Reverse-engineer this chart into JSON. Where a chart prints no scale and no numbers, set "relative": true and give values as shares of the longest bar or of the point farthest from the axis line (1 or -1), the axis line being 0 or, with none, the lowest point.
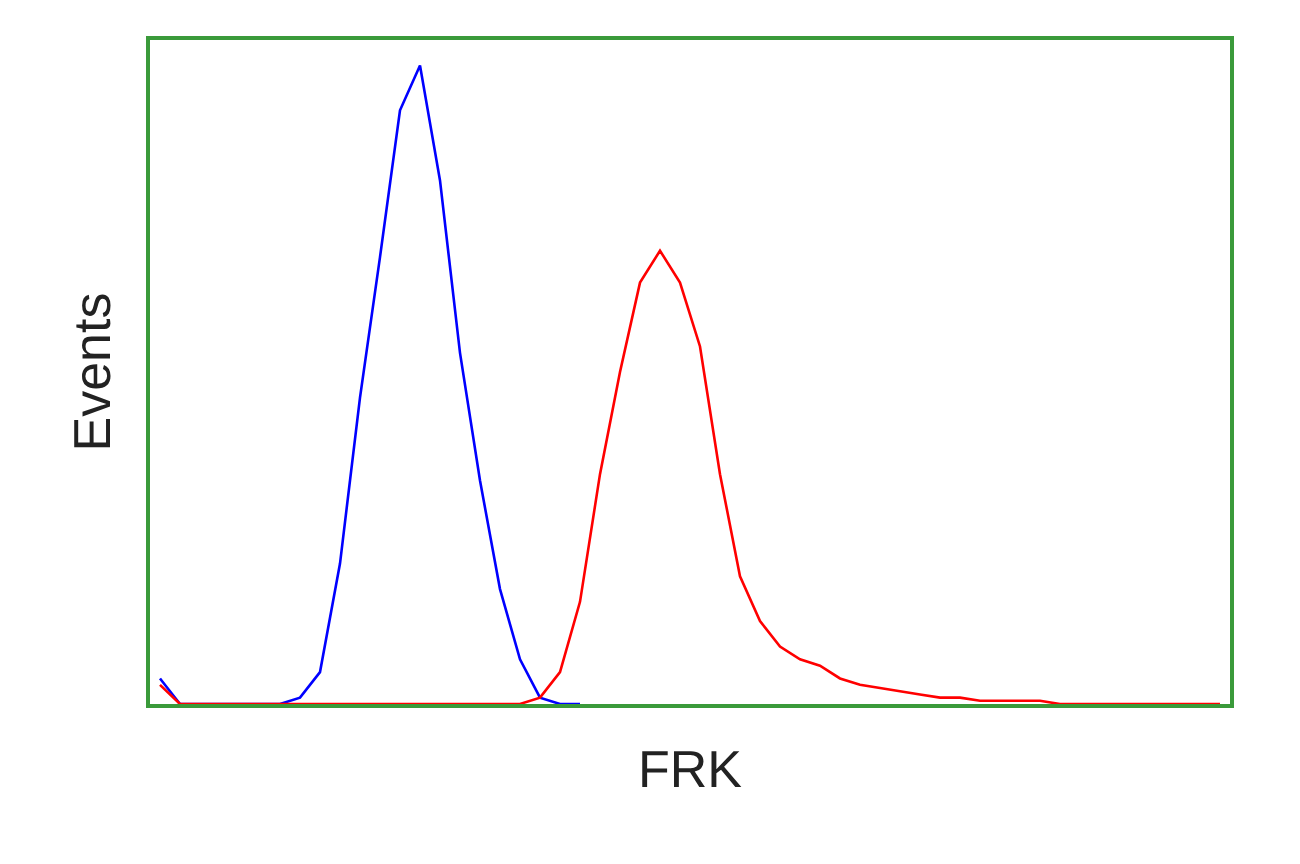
{
  "chart_data": {
    "type": "line",
    "relative": true,
    "xlabel": "FRK",
    "ylabel": "Events",
    "legend": false,
    "marker": "none",
    "line_style": "solid",
    "categories": [
      null,
      null,
      null,
      null,
      null,
      null,
      null,
      null,
      null,
      null,
      null,
      null,
      null,
      null,
      null,
      null,
      null,
      null,
      null,
      null,
      null,
      null,
      null,
      null,
      null,
      null,
      null,
      null,
      null,
      null,
      null,
      null,
      null,
      null,
      null,
      null,
      null,
      null,
      null,
      null,
      null,
      null,
      null,
      null,
      null,
      null,
      null,
      null,
      null,
      null,
      null,
      null,
      null,
      null
    ],
    "series": [
      {
        "color": "#0000ff",
        "values": [
          0.04,
          0,
          0,
          0,
          0,
          0,
          0,
          0.01,
          0.05,
          0.22,
          0.48,
          0.7,
          0.93,
          1.0,
          0.82,
          0.55,
          0.35,
          0.18,
          0.07,
          0.01,
          0,
          0,
          null,
          null,
          null,
          null,
          null,
          null,
          null,
          null,
          null,
          null,
          null,
          null,
          null,
          null,
          null,
          null,
          null,
          null,
          null,
          null,
          null,
          null,
          null,
          null,
          null,
          null,
          null,
          null,
          null,
          null,
          null,
          null
        ]
      },
      {
        "color": "#ff0000",
        "values": [
          0.03,
          0,
          0,
          0,
          0,
          0,
          0,
          0,
          0,
          0,
          0,
          0,
          0,
          0,
          0,
          0,
          0,
          0,
          0,
          0.01,
          0.05,
          0.16,
          0.36,
          0.52,
          0.66,
          0.71,
          0.66,
          0.56,
          0.36,
          0.2,
          0.13,
          0.09,
          0.07,
          0.06,
          0.04,
          0.03,
          0.025,
          0.02,
          0.015,
          0.01,
          0.01,
          0.005,
          0.005,
          0.005,
          0.005,
          0,
          0,
          0,
          0,
          0,
          0,
          0,
          0,
          0
        ]
      }
    ]
  }
}
